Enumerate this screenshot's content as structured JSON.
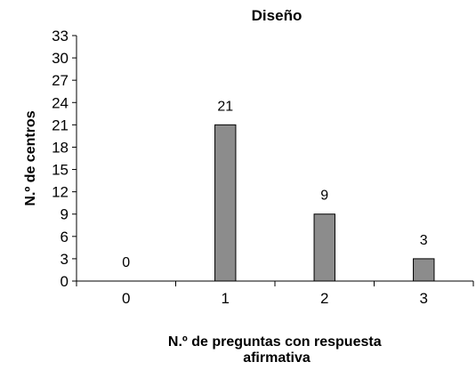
{
  "chart_data": {
    "type": "bar",
    "title": "Diseño",
    "xlabel_lines": [
      "N.º de preguntas con respuesta",
      "afirmativa"
    ],
    "ylabel": "N.º de centros",
    "categories": [
      "0",
      "1",
      "2",
      "3"
    ],
    "values": [
      0,
      21,
      9,
      3
    ],
    "data_labels": [
      "0",
      "21",
      "9",
      "3"
    ],
    "ylim": [
      0,
      33
    ],
    "yticks": [
      0,
      3,
      6,
      9,
      12,
      15,
      18,
      21,
      24,
      27,
      30,
      33
    ],
    "grid": false,
    "legend": "none",
    "bar_color": "#8c8c8c"
  }
}
